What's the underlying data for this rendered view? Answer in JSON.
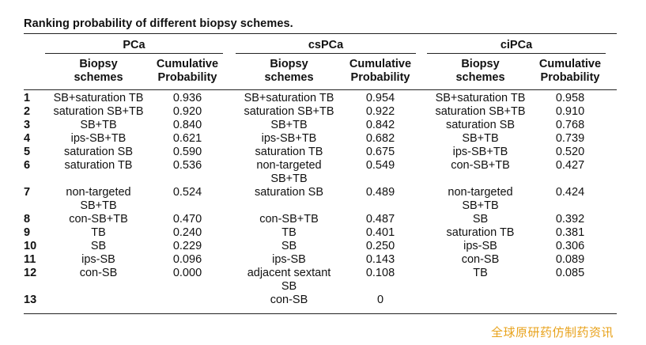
{
  "title": "Ranking probability of different biopsy schemes.",
  "groups": [
    "PCa",
    "csPCa",
    "ciPCa"
  ],
  "col_headers": {
    "scheme": [
      "Biopsy",
      "schemes"
    ],
    "prob": [
      "Cumulative",
      "Probability"
    ]
  },
  "rows": [
    {
      "rank": "1",
      "pca": [
        "SB+saturation TB"
      ],
      "pca_p": "0.936",
      "cs": [
        "SB+saturation TB"
      ],
      "cs_p": "0.954",
      "ci": [
        "SB+saturation TB"
      ],
      "ci_p": "0.958"
    },
    {
      "rank": "2",
      "pca": [
        "saturation SB+TB"
      ],
      "pca_p": "0.920",
      "cs": [
        "saturation SB+TB"
      ],
      "cs_p": "0.922",
      "ci": [
        "saturation SB+TB"
      ],
      "ci_p": "0.910"
    },
    {
      "rank": "3",
      "pca": [
        "SB+TB"
      ],
      "pca_p": "0.840",
      "cs": [
        "SB+TB"
      ],
      "cs_p": "0.842",
      "ci": [
        "saturation SB"
      ],
      "ci_p": "0.768"
    },
    {
      "rank": "4",
      "pca": [
        "ips-SB+TB"
      ],
      "pca_p": "0.621",
      "cs": [
        "ips-SB+TB"
      ],
      "cs_p": "0.682",
      "ci": [
        "SB+TB"
      ],
      "ci_p": "0.739"
    },
    {
      "rank": "5",
      "pca": [
        "saturation SB"
      ],
      "pca_p": "0.590",
      "cs": [
        "saturation TB"
      ],
      "cs_p": "0.675",
      "ci": [
        "ips-SB+TB"
      ],
      "ci_p": "0.520"
    },
    {
      "rank": "6",
      "pca": [
        "saturation TB"
      ],
      "pca_p": "0.536",
      "cs": [
        "non-targeted",
        "SB+TB"
      ],
      "cs_p": "0.549",
      "ci": [
        "con-SB+TB"
      ],
      "ci_p": "0.427"
    },
    {
      "rank": "7",
      "pca": [
        "non-targeted",
        "SB+TB"
      ],
      "pca_p": "0.524",
      "cs": [
        "saturation SB"
      ],
      "cs_p": "0.489",
      "ci": [
        "non-targeted",
        "SB+TB"
      ],
      "ci_p": "0.424"
    },
    {
      "rank": "8",
      "pca": [
        "con-SB+TB"
      ],
      "pca_p": "0.470",
      "cs": [
        "con-SB+TB"
      ],
      "cs_p": "0.487",
      "ci": [
        "SB"
      ],
      "ci_p": "0.392"
    },
    {
      "rank": "9",
      "pca": [
        "TB"
      ],
      "pca_p": "0.240",
      "cs": [
        "TB"
      ],
      "cs_p": "0.401",
      "ci": [
        "saturation TB"
      ],
      "ci_p": "0.381"
    },
    {
      "rank": "10",
      "pca": [
        "SB"
      ],
      "pca_p": "0.229",
      "cs": [
        "SB"
      ],
      "cs_p": "0.250",
      "ci": [
        "ips-SB"
      ],
      "ci_p": "0.306"
    },
    {
      "rank": "11",
      "pca": [
        "ips-SB"
      ],
      "pca_p": "0.096",
      "cs": [
        "ips-SB"
      ],
      "cs_p": "0.143",
      "ci": [
        "con-SB"
      ],
      "ci_p": "0.089"
    },
    {
      "rank": "12",
      "pca": [
        "con-SB"
      ],
      "pca_p": "0.000",
      "cs": [
        "adjacent sextant",
        "SB"
      ],
      "cs_p": "0.108",
      "ci": [
        "TB"
      ],
      "ci_p": "0.085"
    },
    {
      "rank": "13",
      "pca": [],
      "pca_p": "",
      "cs": [
        "con-SB"
      ],
      "cs_p": "0",
      "ci": [],
      "ci_p": ""
    }
  ],
  "watermark": "全球原研药仿制药资讯"
}
